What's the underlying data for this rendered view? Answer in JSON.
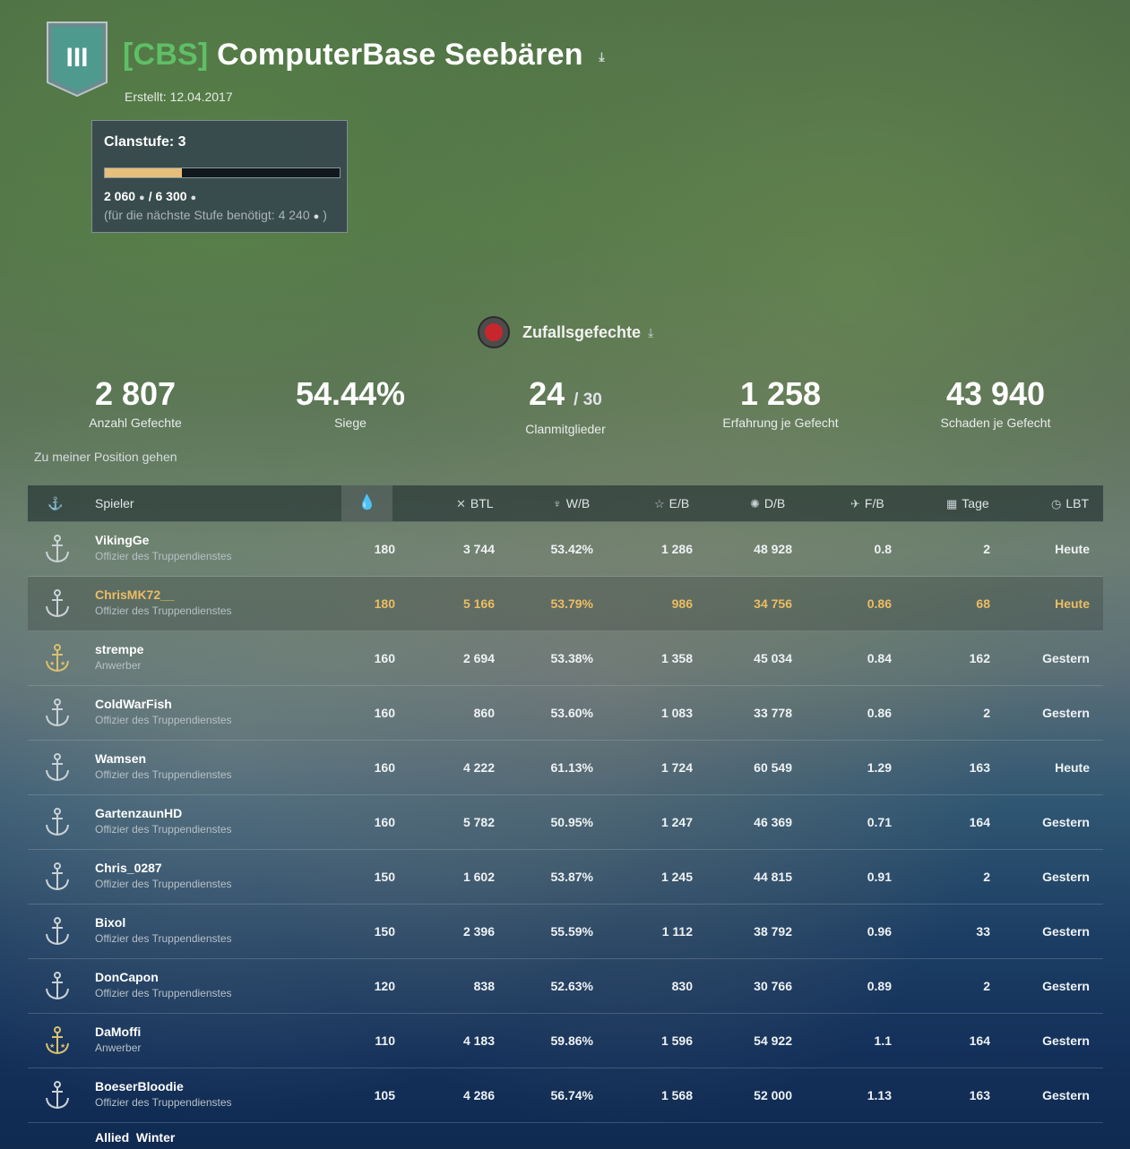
{
  "clan": {
    "emblem_numeral": "III",
    "tag": "[CBS]",
    "name": "ComputerBase Seebären",
    "created": "Erstellt: 12.04.2017",
    "colors": {
      "tag": "#5fbf67",
      "highlight": "#ecbd62",
      "progress": "#e7bf7a"
    }
  },
  "level": {
    "title": "Clanstufe: 3",
    "current": "2 060",
    "total": "/ 6 300",
    "progress_fraction": 0.327,
    "needed": "(für die nächste Stufe benötigt: 4 240",
    "needed_close": ")",
    "icon": "oil-drop-icon"
  },
  "mode": {
    "label": "Zufallsgefechte",
    "icon": "random-battles-icon"
  },
  "stats": [
    {
      "value": "2 807",
      "sub": "",
      "label": "Anzahl Gefechte"
    },
    {
      "value": "54.44%",
      "sub": "",
      "label": "Siege"
    },
    {
      "value": "24",
      "sub": "/ 30",
      "label": "Clanmitglieder"
    },
    {
      "value": "1 258",
      "sub": "",
      "label": "Erfahrung je Gefecht"
    },
    {
      "value": "43 940",
      "sub": "",
      "label": "Schaden je Gefecht"
    }
  ],
  "goto_position": "Zu meiner Position gehen",
  "table": {
    "headers": {
      "player": "Spieler",
      "btl": "BTL",
      "wb": "W/B",
      "eb": "E/B",
      "db": "D/B",
      "fb": "F/B",
      "tage": "Tage",
      "lbt": "LBT"
    },
    "header_icons": [
      "anchor-icon",
      "oil-drop-icon",
      "crossed-swords-icon",
      "trophy-icon",
      "star-icon",
      "explosion-icon",
      "plane-icon",
      "calendar-icon",
      "clock-icon"
    ],
    "rows": [
      {
        "name": "VikingGe",
        "role": "Offizier des Truppendienstes",
        "oil": "180",
        "btl": "3 744",
        "wb": "53.42%",
        "eb": "1 286",
        "db": "48 928",
        "fb": "0.8",
        "tage": "2",
        "lbt": "Heute",
        "highlight": false,
        "rank_icon": "anchor-icon"
      },
      {
        "name": "ChrisMK72__",
        "role": "Offizier des Truppendienstes",
        "oil": "180",
        "btl": "5 166",
        "wb": "53.79%",
        "eb": "986",
        "db": "34 756",
        "fb": "0.86",
        "tage": "68",
        "lbt": "Heute",
        "highlight": true,
        "rank_icon": "anchor-icon"
      },
      {
        "name": "strempe",
        "role": "Anwerber",
        "oil": "160",
        "btl": "2 694",
        "wb": "53.38%",
        "eb": "1 358",
        "db": "45 034",
        "fb": "0.84",
        "tage": "162",
        "lbt": "Gestern",
        "highlight": false,
        "rank_icon": "gold-anchor-icon"
      },
      {
        "name": "ColdWarFish",
        "role": "Offizier des Truppendienstes",
        "oil": "160",
        "btl": "860",
        "wb": "53.60%",
        "eb": "1 083",
        "db": "33 778",
        "fb": "0.86",
        "tage": "2",
        "lbt": "Gestern",
        "highlight": false,
        "rank_icon": "anchor-icon"
      },
      {
        "name": "Wamsen",
        "role": "Offizier des Truppendienstes",
        "oil": "160",
        "btl": "4 222",
        "wb": "61.13%",
        "eb": "1 724",
        "db": "60 549",
        "fb": "1.29",
        "tage": "163",
        "lbt": "Heute",
        "highlight": false,
        "rank_icon": "anchor-icon"
      },
      {
        "name": "GartenzaunHD",
        "role": "Offizier des Truppendienstes",
        "oil": "160",
        "btl": "5 782",
        "wb": "50.95%",
        "eb": "1 247",
        "db": "46 369",
        "fb": "0.71",
        "tage": "164",
        "lbt": "Gestern",
        "highlight": false,
        "rank_icon": "anchor-icon"
      },
      {
        "name": "Chris_0287",
        "role": "Offizier des Truppendienstes",
        "oil": "150",
        "btl": "1 602",
        "wb": "53.87%",
        "eb": "1 245",
        "db": "44 815",
        "fb": "0.91",
        "tage": "2",
        "lbt": "Gestern",
        "highlight": false,
        "rank_icon": "anchor-icon"
      },
      {
        "name": "Bixol",
        "role": "Offizier des Truppendienstes",
        "oil": "150",
        "btl": "2 396",
        "wb": "55.59%",
        "eb": "1 112",
        "db": "38 792",
        "fb": "0.96",
        "tage": "33",
        "lbt": "Gestern",
        "highlight": false,
        "rank_icon": "anchor-icon"
      },
      {
        "name": "DonCapon",
        "role": "Offizier des Truppendienstes",
        "oil": "120",
        "btl": "838",
        "wb": "52.63%",
        "eb": "830",
        "db": "30 766",
        "fb": "0.89",
        "tage": "2",
        "lbt": "Gestern",
        "highlight": false,
        "rank_icon": "anchor-icon"
      },
      {
        "name": "DaMoffi",
        "role": "Anwerber",
        "oil": "110",
        "btl": "4 183",
        "wb": "59.86%",
        "eb": "1 596",
        "db": "54 922",
        "fb": "1.1",
        "tage": "164",
        "lbt": "Gestern",
        "highlight": false,
        "rank_icon": "gold-anchor-icon"
      },
      {
        "name": "BoeserBloodie",
        "role": "Offizier des Truppendienstes",
        "oil": "105",
        "btl": "4 286",
        "wb": "56.74%",
        "eb": "1 568",
        "db": "52 000",
        "fb": "1.13",
        "tage": "163",
        "lbt": "Gestern",
        "highlight": false,
        "rank_icon": "anchor-icon"
      }
    ],
    "partial_row": {
      "name": "Allied_Winter"
    }
  }
}
